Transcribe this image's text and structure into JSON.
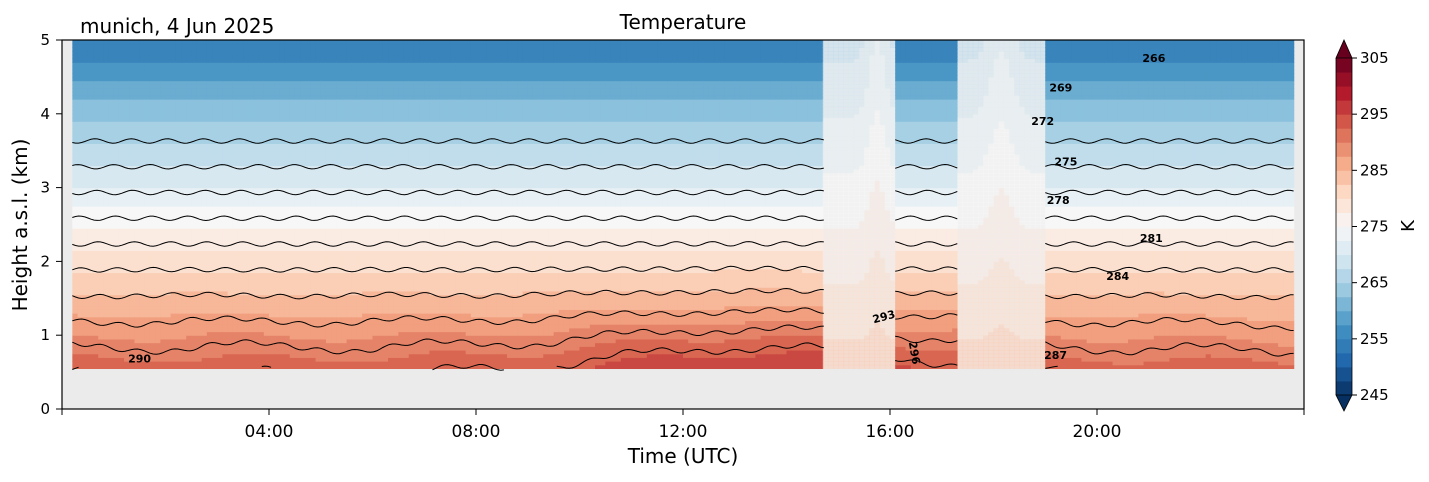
{
  "chart_data": {
    "type": "heatmap",
    "title": "Temperature",
    "subtitle": "munich, 4 Jun 2025",
    "xlabel": "Time (UTC)",
    "ylabel": "Height a.s.l. (km)",
    "colorbar_label": "K",
    "xlim_hours": [
      0,
      24
    ],
    "ylim": [
      0,
      5
    ],
    "x_ticks": [
      {
        "value": 4,
        "label": "04:00"
      },
      {
        "value": 8,
        "label": "08:00"
      },
      {
        "value": 12,
        "label": "12:00"
      },
      {
        "value": 16,
        "label": "16:00"
      },
      {
        "value": 20,
        "label": "20:00"
      }
    ],
    "y_ticks": [
      {
        "value": 0,
        "label": "0"
      },
      {
        "value": 1,
        "label": "1"
      },
      {
        "value": 2,
        "label": "2"
      },
      {
        "value": 3,
        "label": "3"
      },
      {
        "value": 4,
        "label": "4"
      },
      {
        "value": 5,
        "label": "5"
      }
    ],
    "colorbar_range": [
      245,
      305
    ],
    "colorbar_ticks": [
      {
        "value": 245,
        "label": "245"
      },
      {
        "value": 255,
        "label": "255"
      },
      {
        "value": 265,
        "label": "265"
      },
      {
        "value": 275,
        "label": "275"
      },
      {
        "value": 285,
        "label": "285"
      },
      {
        "value": 295,
        "label": "295"
      },
      {
        "value": 305,
        "label": "305"
      }
    ],
    "colormap": "RdBu_r",
    "colormap_stops": [
      "#053061",
      "#2166ac",
      "#4393c3",
      "#92c5de",
      "#d1e5f0",
      "#f7f7f7",
      "#fddbc7",
      "#f4a582",
      "#d6604d",
      "#b2182b",
      "#67001f"
    ],
    "missing_color": "#ebebeb",
    "data_bottom_km": 0.55,
    "contour_interval_K": 3,
    "contour_labels": [
      {
        "text": "266",
        "x": 21.1,
        "y": 4.7,
        "angle": 0
      },
      {
        "text": "269",
        "x": 19.3,
        "y": 4.3,
        "angle": 0
      },
      {
        "text": "272",
        "x": 18.95,
        "y": 3.85,
        "angle": 0
      },
      {
        "text": "275",
        "x": 19.4,
        "y": 3.3,
        "angle": 0
      },
      {
        "text": "278",
        "x": 19.25,
        "y": 2.78,
        "angle": 0
      },
      {
        "text": "281",
        "x": 21.05,
        "y": 2.26,
        "angle": 0
      },
      {
        "text": "284",
        "x": 20.4,
        "y": 1.75,
        "angle": 0
      },
      {
        "text": "287",
        "x": 19.2,
        "y": 0.68,
        "angle": 0
      },
      {
        "text": "290",
        "x": 1.5,
        "y": 0.63,
        "angle": 0
      },
      {
        "text": "293",
        "x": 15.9,
        "y": 1.2,
        "angle": -15
      },
      {
        "text": "296",
        "x": 16.4,
        "y": 0.75,
        "angle": 80
      }
    ]
  }
}
